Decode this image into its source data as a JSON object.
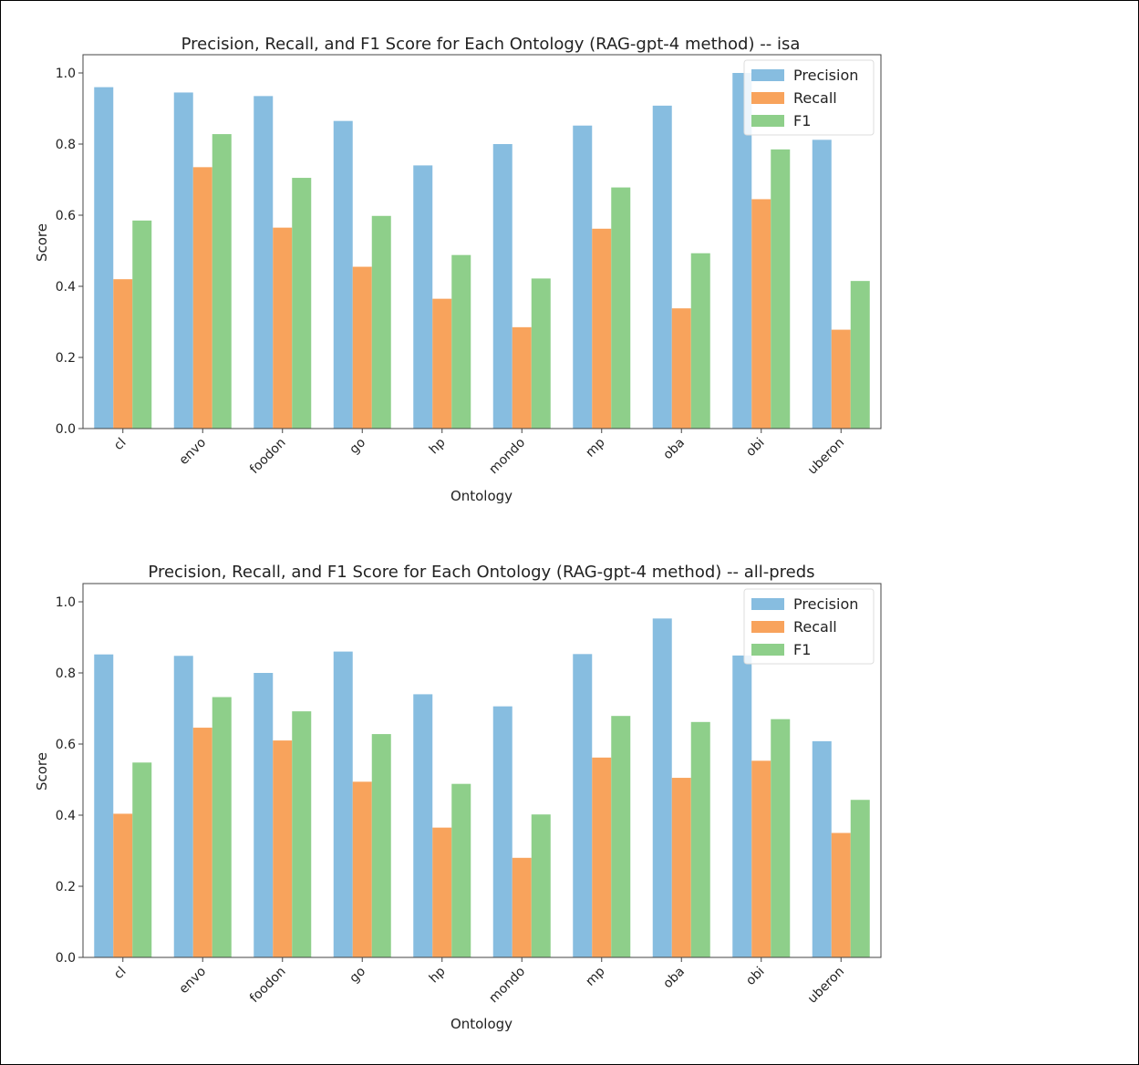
{
  "chart_data": [
    {
      "type": "bar",
      "title": "Precision, Recall, and F1 Score for Each Ontology (RAG-gpt-4 method) -- isa",
      "xlabel": "Ontology",
      "ylabel": "Score",
      "ylim": [
        0,
        1.0
      ],
      "yticks": [
        "0.0",
        "0.2",
        "0.4",
        "0.6",
        "0.8",
        "1.0"
      ],
      "categories": [
        "cl",
        "envo",
        "foodon",
        "go",
        "hp",
        "mondo",
        "mp",
        "oba",
        "obi",
        "uberon"
      ],
      "legend_position": "top-right",
      "grid": false,
      "series": [
        {
          "name": "Precision",
          "color": "#87bde0",
          "values": [
            0.96,
            0.945,
            0.935,
            0.865,
            0.74,
            0.8,
            0.852,
            0.908,
            1.0,
            0.812
          ]
        },
        {
          "name": "Recall",
          "color": "#f8a35c",
          "values": [
            0.42,
            0.735,
            0.565,
            0.455,
            0.365,
            0.285,
            0.562,
            0.338,
            0.645,
            0.278
          ]
        },
        {
          "name": "F1",
          "color": "#8ecf8a",
          "values": [
            0.585,
            0.828,
            0.705,
            0.598,
            0.488,
            0.422,
            0.678,
            0.493,
            0.785,
            0.415
          ]
        }
      ]
    },
    {
      "type": "bar",
      "title": "Precision, Recall, and F1 Score for Each Ontology (RAG-gpt-4 method) -- all-preds",
      "xlabel": "Ontology",
      "ylabel": "Score",
      "ylim": [
        0,
        1.0
      ],
      "yticks": [
        "0.0",
        "0.2",
        "0.4",
        "0.6",
        "0.8",
        "1.0"
      ],
      "categories": [
        "cl",
        "envo",
        "foodon",
        "go",
        "hp",
        "mondo",
        "mp",
        "oba",
        "obi",
        "uberon"
      ],
      "legend_position": "top-right",
      "grid": false,
      "series": [
        {
          "name": "Precision",
          "color": "#87bde0",
          "values": [
            0.852,
            0.848,
            0.8,
            0.86,
            0.74,
            0.706,
            0.853,
            0.953,
            0.849,
            0.608
          ]
        },
        {
          "name": "Recall",
          "color": "#f8a35c",
          "values": [
            0.404,
            0.646,
            0.61,
            0.494,
            0.365,
            0.28,
            0.562,
            0.505,
            0.553,
            0.35
          ]
        },
        {
          "name": "F1",
          "color": "#8ecf8a",
          "values": [
            0.548,
            0.732,
            0.692,
            0.628,
            0.488,
            0.402,
            0.679,
            0.662,
            0.67,
            0.443
          ]
        }
      ]
    }
  ]
}
